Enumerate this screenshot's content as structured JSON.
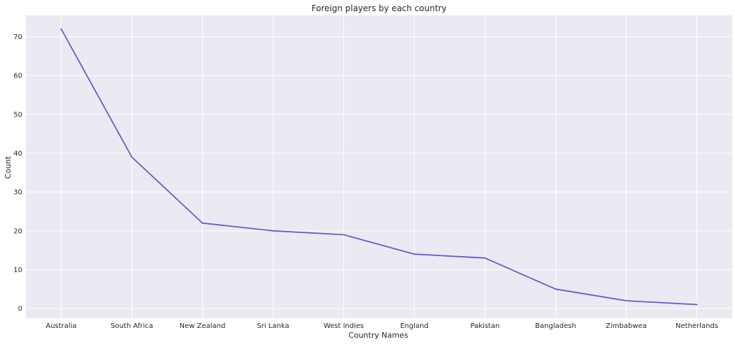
{
  "chart_data": {
    "type": "line",
    "title": "Foreign players by each country",
    "xlabel": "Country Names",
    "ylabel": "Count",
    "categories": [
      "Australia",
      "South Africa",
      "New Zealand",
      "Sri Lanka",
      "West Indies",
      "England",
      "Pakistan",
      "Bangladesh",
      "Zimbabwea",
      "Netherlands"
    ],
    "series": [
      {
        "values": [
          72,
          39,
          22,
          20,
          19,
          14,
          13,
          5,
          2,
          1
        ],
        "color": "#6a5acd"
      }
    ],
    "ylim": [
      -2.5,
      75.5
    ],
    "yticks": [
      0,
      10,
      20,
      30,
      40,
      50,
      60,
      70
    ],
    "grid": true,
    "background": "#eaeaf2",
    "grid_color": "#ffffff"
  }
}
